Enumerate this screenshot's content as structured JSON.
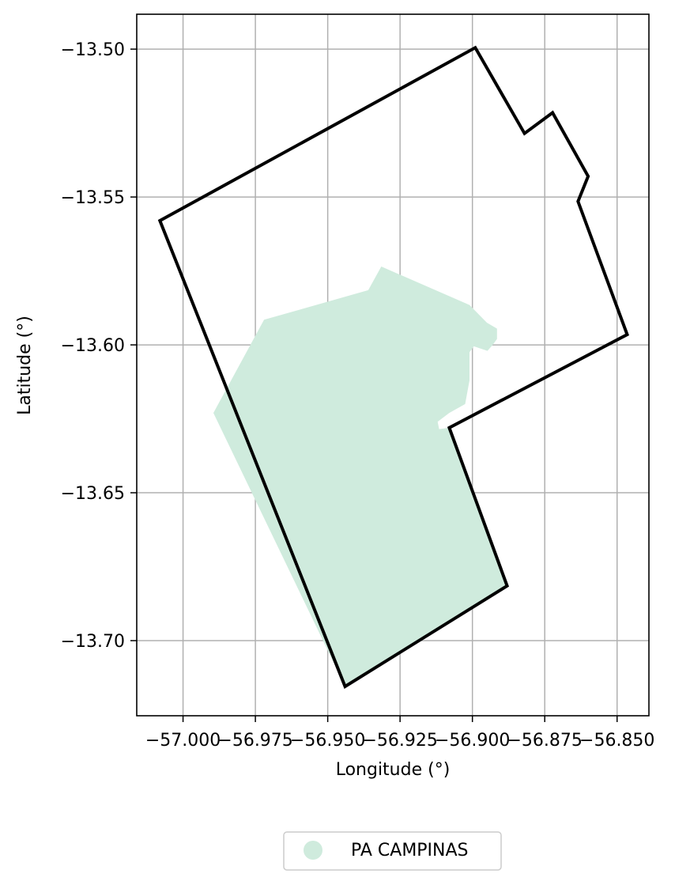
{
  "chart_data": {
    "type": "map",
    "xlabel": "Longitude (°)",
    "ylabel": "Latitude (°)",
    "xlim": [
      -57.016,
      -56.839
    ],
    "ylim": [
      -13.7254,
      -13.4882
    ],
    "grid": true,
    "x_ticks": [
      {
        "value": -57.0,
        "label": "−57.000"
      },
      {
        "value": -56.975,
        "label": "−56.975"
      },
      {
        "value": -56.95,
        "label": "−56.950"
      },
      {
        "value": -56.925,
        "label": "−56.925"
      },
      {
        "value": -56.9,
        "label": "−56.900"
      },
      {
        "value": -56.875,
        "label": "−56.875"
      },
      {
        "value": -56.85,
        "label": "−56.850"
      }
    ],
    "y_ticks": [
      {
        "value": -13.5,
        "label": "−13.50"
      },
      {
        "value": -13.55,
        "label": "−13.55"
      },
      {
        "value": -13.6,
        "label": "−13.60"
      },
      {
        "value": -13.65,
        "label": "−13.65"
      },
      {
        "value": -13.7,
        "label": "−13.70"
      }
    ],
    "outline": {
      "color": "#000000",
      "coords": [
        [
          -57.008,
          -13.558
        ],
        [
          -56.899,
          -13.4995
        ],
        [
          -56.882,
          -13.5285
        ],
        [
          -56.8723,
          -13.5215
        ],
        [
          -56.86,
          -13.543
        ],
        [
          -56.8635,
          -13.5515
        ],
        [
          -56.8465,
          -13.5965
        ],
        [
          -56.908,
          -13.628
        ],
        [
          -56.888,
          -13.6815
        ],
        [
          -56.944,
          -13.7155
        ],
        [
          -57.008,
          -13.558
        ]
      ]
    },
    "series": [
      {
        "name": "PA CAMPINAS",
        "color": "#cfebdd",
        "coords": [
          [
            -56.9895,
            -13.623
          ],
          [
            -56.972,
            -13.5915
          ],
          [
            -56.936,
            -13.5815
          ],
          [
            -56.9315,
            -13.5735
          ],
          [
            -56.901,
            -13.5865
          ],
          [
            -56.895,
            -13.5925
          ],
          [
            -56.8915,
            -13.5945
          ],
          [
            -56.8915,
            -13.598
          ],
          [
            -56.893,
            -13.6
          ],
          [
            -56.8948,
            -13.602
          ],
          [
            -56.8995,
            -13.6005
          ],
          [
            -56.901,
            -13.6025
          ],
          [
            -56.901,
            -13.612
          ],
          [
            -56.9025,
            -13.62
          ],
          [
            -56.908,
            -13.623
          ],
          [
            -56.912,
            -13.626
          ],
          [
            -56.9115,
            -13.6285
          ],
          [
            -56.908,
            -13.628
          ],
          [
            -56.888,
            -13.6815
          ],
          [
            -56.944,
            -13.7155
          ],
          [
            -56.9895,
            -13.623
          ]
        ]
      }
    ],
    "legend": {
      "placement": "bottom-center",
      "entries": [
        "PA CAMPINAS"
      ]
    }
  }
}
